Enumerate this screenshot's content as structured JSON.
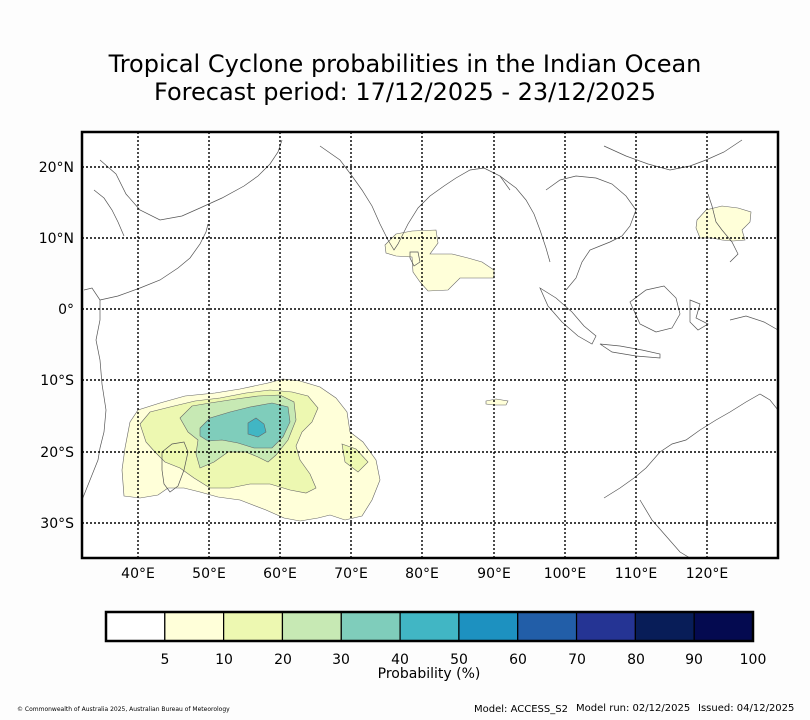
{
  "title": {
    "line1": "Tropical Cyclone probabilities in the Indian Ocean",
    "line2": "Forecast period: 17/12/2025 - 23/12/2025"
  },
  "axes": {
    "lon_labels": [
      {
        "lon": 40,
        "text": "40°E"
      },
      {
        "lon": 50,
        "text": "50°E"
      },
      {
        "lon": 60,
        "text": "60°E"
      },
      {
        "lon": 70,
        "text": "70°E"
      },
      {
        "lon": 80,
        "text": "80°E"
      },
      {
        "lon": 90,
        "text": "90°E"
      },
      {
        "lon": 100,
        "text": "100°E"
      },
      {
        "lon": 110,
        "text": "110°E"
      },
      {
        "lon": 120,
        "text": "120°E"
      }
    ],
    "lat_labels": [
      {
        "lat": 20,
        "text": "20°N"
      },
      {
        "lat": 10,
        "text": "10°N"
      },
      {
        "lat": 0,
        "text": "0°"
      },
      {
        "lat": -10,
        "text": "10°S"
      },
      {
        "lat": -20,
        "text": "20°S"
      },
      {
        "lat": -30,
        "text": "30°S"
      }
    ],
    "lon_range": [
      32,
      130
    ],
    "lat_range": [
      -35,
      25
    ]
  },
  "legend": {
    "title": "Probability (%)",
    "colors": [
      "#ffffff",
      "#ffffd9",
      "#edf8b1",
      "#c7e9b4",
      "#7fcdbb",
      "#41b6c4",
      "#1d91c0",
      "#225ea8",
      "#253494",
      "#081d58",
      "#040a50"
    ],
    "tick_labels": [
      "5",
      "10",
      "20",
      "30",
      "40",
      "50",
      "60",
      "70",
      "80",
      "90",
      "100"
    ]
  },
  "probability_regions": [
    {
      "name": "south-indian-ocean-5pct",
      "level": "5",
      "color": "#ffffd9"
    },
    {
      "name": "south-indian-ocean-10pct",
      "level": "10",
      "color": "#edf8b1"
    },
    {
      "name": "south-indian-ocean-20pct",
      "level": "20",
      "color": "#c7e9b4"
    },
    {
      "name": "south-indian-ocean-30pct",
      "level": "30",
      "color": "#7fcdbb"
    },
    {
      "name": "south-indian-ocean-40pct",
      "level": "40",
      "color": "#41b6c4"
    },
    {
      "name": "arabian-sea-south-5pct",
      "level": "5",
      "color": "#ffffd9"
    },
    {
      "name": "philippines-5pct",
      "level": "5",
      "color": "#ffffd9"
    },
    {
      "name": "central-indian-ocean-5pct",
      "level": "5",
      "color": "#ffffd9"
    }
  ],
  "footer": {
    "copyright": "© Commonwealth of Australia 2025, Australian Bureau of Meteorology",
    "model": "Model: ACCESS_S2",
    "model_run": "Model run: 02/12/2025",
    "issued": "Issued: 04/12/2025"
  }
}
